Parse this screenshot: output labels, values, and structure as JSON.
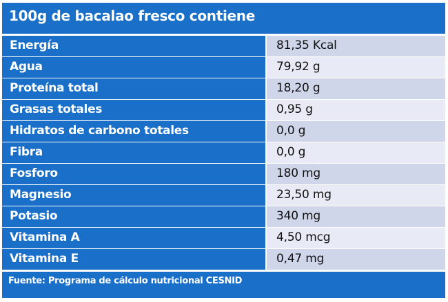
{
  "title": "100g de bacalao fresco contiene",
  "rows": [
    {
      "label": "Energía",
      "value": "81,35 Kcal"
    },
    {
      "label": "Agua",
      "value": "79,92 g"
    },
    {
      "label": "Proteína total",
      "value": "18,20 g"
    },
    {
      "label": "Grasas totales",
      "value": "0,95 g"
    },
    {
      "label": "Hidratos de carbono totales",
      "value": "0,0 g"
    },
    {
      "label": "Fibra",
      "value": "0,0 g"
    },
    {
      "label": "Fosforo",
      "value": "180 mg"
    },
    {
      "label": "Magnesio",
      "value": "23,50 mg"
    },
    {
      "label": "Potasio",
      "value": "340 mg"
    },
    {
      "label": "Vitamina A",
      "value": "4,50 mcg"
    },
    {
      "label": "Vitamina E",
      "value": "0,47 mg"
    }
  ],
  "footer": "Fuente: Programa de cálculo nutricional CESNID",
  "colors": {
    "header_blue": "#1a70c8",
    "row_odd": "#cfd6ea",
    "row_even": "#e8ebf5"
  }
}
